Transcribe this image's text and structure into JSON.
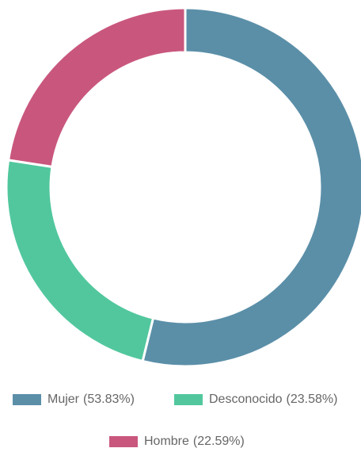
{
  "chart_data": {
    "type": "donut",
    "categories": [
      "Mujer",
      "Desconocido",
      "Hombre"
    ],
    "values": [
      53.83,
      23.58,
      22.59
    ],
    "value_labels": [
      "(53.83%)",
      "(23.58%)",
      "(22.59%)"
    ],
    "colors": [
      "#5b8fa8",
      "#52c79e",
      "#c9577d"
    ]
  }
}
